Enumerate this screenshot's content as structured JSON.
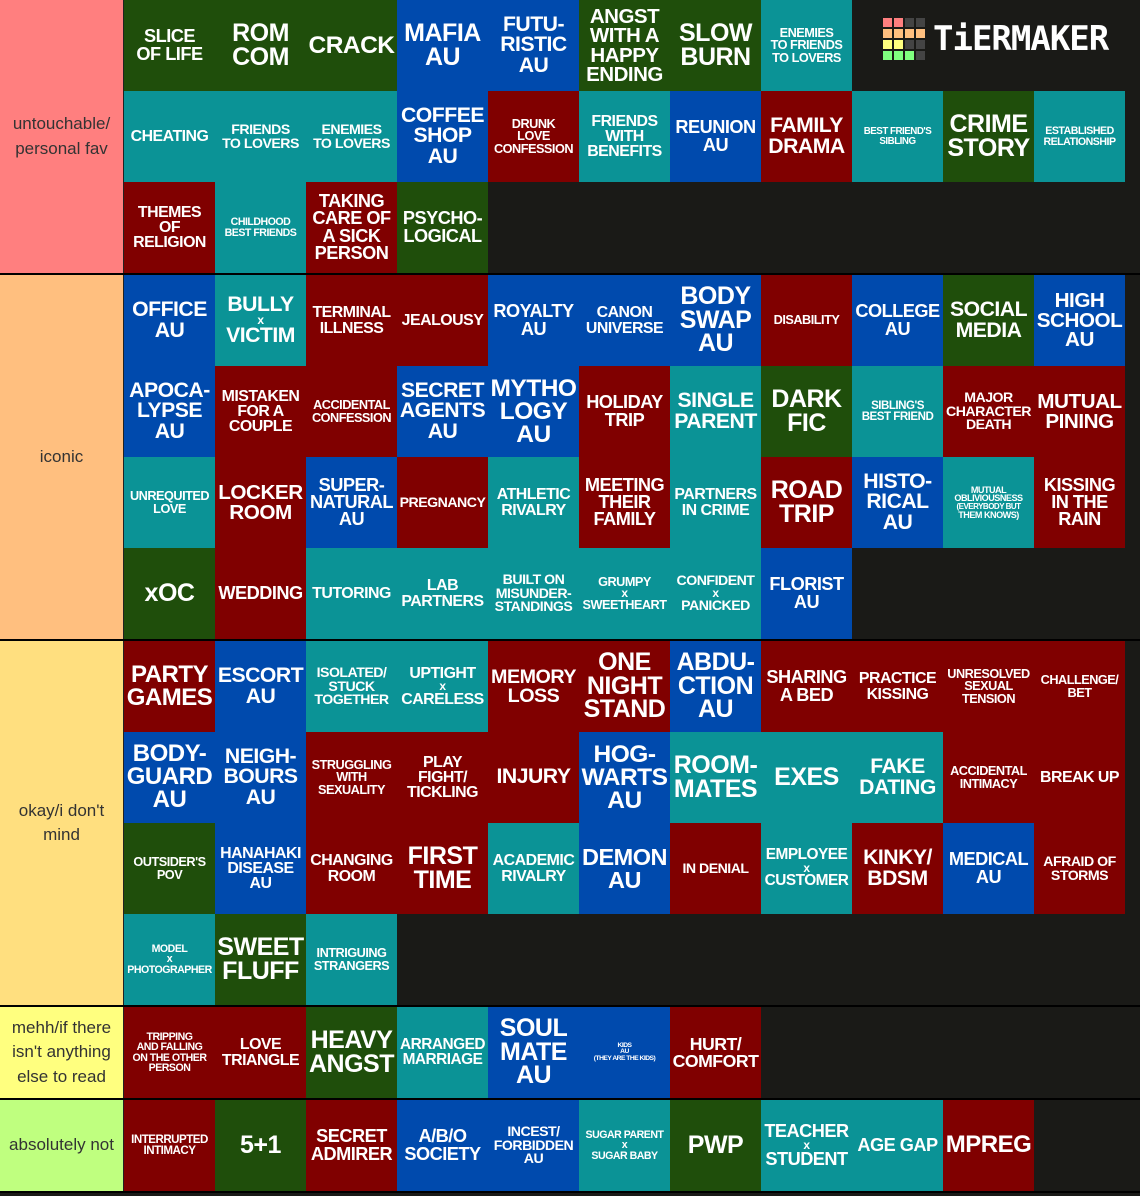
{
  "colors": {
    "g": "#1f4e0b",
    "b": "#004aad",
    "t": "#0b9396",
    "r": "#800000",
    "bg": "#1a1a17"
  },
  "logo": {
    "text": "TiERMAKER",
    "grid": [
      "#ff7f7f",
      "#ff7f7f",
      "#444",
      "#444",
      "#ffbf7f",
      "#ffbf7f",
      "#ffbf7f",
      "#ffbf7f",
      "#ffff7f",
      "#ffff7f",
      "#444",
      "#444",
      "#7fff7f",
      "#7fff7f",
      "#7fff7f",
      "#444"
    ]
  },
  "tiers": [
    {
      "label": "untouchable/ personal fav",
      "color": "#ff7f7f",
      "rows": 3,
      "items": [
        [
          "SLICE|OF LIFE",
          "g"
        ],
        [
          "ROM|COM",
          "g"
        ],
        [
          "CRACK",
          "g"
        ],
        [
          "MAFIA|AU",
          "b"
        ],
        [
          "FUTU-|RISTIC|AU",
          "b"
        ],
        [
          "ANGST|WITH A|HAPPY|ENDING",
          "g"
        ],
        [
          "SLOW|BURN",
          "g"
        ],
        [
          "ENEMIES|TO FRIENDS|TO LOVERS",
          "t"
        ],
        null,
        null,
        null,
        [
          "CHEATING",
          "t"
        ],
        [
          "FRIENDS|TO LOVERS",
          "t"
        ],
        [
          "ENEMIES|TO LOVERS",
          "t"
        ],
        [
          "COFFEE|SHOP|AU",
          "b"
        ],
        [
          "DRUNK|LOVE|CONFESSION",
          "r"
        ],
        [
          "FRIENDS|WITH|BENEFITS",
          "t"
        ],
        [
          "REUNION|AU",
          "b"
        ],
        [
          "FAMILY|DRAMA",
          "r"
        ],
        [
          "BEST FRIEND'S|SIBLING",
          "t"
        ],
        [
          "CRIME|STORY",
          "g"
        ],
        [
          "ESTABLISHED|RELATIONSHIP",
          "t"
        ],
        [
          "THEMES|OF|RELIGION",
          "r"
        ],
        [
          "CHILDHOOD|BEST FRIENDS",
          "t"
        ],
        [
          "TAKING|CARE OF|A SICK|PERSON",
          "r"
        ],
        [
          "PSYCHO-|LOGICAL",
          "g"
        ]
      ]
    },
    {
      "label": "iconic",
      "color": "#ffbf7f",
      "rows": 4,
      "items": [
        [
          "OFFICE|AU",
          "b"
        ],
        [
          "BULLY|x|VICTIM",
          "t"
        ],
        [
          "TERMINAL|ILLNESS",
          "r"
        ],
        [
          "JEALOUSY",
          "r"
        ],
        [
          "ROYALTY|AU",
          "b"
        ],
        [
          "CANON|UNIVERSE",
          "b"
        ],
        [
          "BODY|SWAP|AU",
          "b"
        ],
        [
          "DISABILITY",
          "r"
        ],
        [
          "COLLEGE|AU",
          "b"
        ],
        [
          "SOCIAL|MEDIA",
          "g"
        ],
        [
          "HIGH|SCHOOL|AU",
          "b"
        ],
        [
          "APOCA-|LYPSE|AU",
          "b"
        ],
        [
          "MISTAKEN|FOR A|COUPLE",
          "r"
        ],
        [
          "ACCIDENTAL|CONFESSION",
          "r"
        ],
        [
          "SECRET|AGENTS|AU",
          "b"
        ],
        [
          "MYTHO|LOGY|AU",
          "b"
        ],
        [
          "HOLIDAY|TRIP",
          "r"
        ],
        [
          "SINGLE|PARENT",
          "t"
        ],
        [
          "DARK|FIC",
          "g"
        ],
        [
          "SIBLING'S|BEST FRIEND",
          "t"
        ],
        [
          "MAJOR|CHARACTER|DEATH",
          "r"
        ],
        [
          "MUTUAL|PINING",
          "r"
        ],
        [
          "UNREQUITED|LOVE",
          "t"
        ],
        [
          "LOCKER|ROOM",
          "r"
        ],
        [
          "SUPER-|NATURAL|AU",
          "b"
        ],
        [
          "PREGNANCY",
          "r"
        ],
        [
          "ATHLETIC|RIVALRY",
          "t"
        ],
        [
          "MEETING|THEIR|FAMILY",
          "r"
        ],
        [
          "PARTNERS|IN CRIME",
          "t"
        ],
        [
          "ROAD|TRIP",
          "r"
        ],
        [
          "HISTO-|RICAL|AU",
          "b"
        ],
        [
          "MUTUAL|OBLIVIOUSNESS|(EVERYBODY BUT|THEM KNOWS)",
          "t"
        ],
        [
          "KISSING|IN THE|RAIN",
          "r"
        ],
        [
          "xOC",
          "g"
        ],
        [
          "WEDDING",
          "r"
        ],
        [
          "TUTORING",
          "t"
        ],
        [
          "LAB|PARTNERS",
          "t"
        ],
        [
          "BUILT ON|MISUNDER-|STANDINGS",
          "t"
        ],
        [
          "GRUMPY|x|SWEETHEART",
          "t"
        ],
        [
          "CONFIDENT|x|PANICKED",
          "t"
        ],
        [
          "FLORIST|AU",
          "b"
        ]
      ]
    },
    {
      "label": "okay/i don't mind",
      "color": "#ffdf7f",
      "rows": 4,
      "items": [
        [
          "PARTY|GAMES",
          "r"
        ],
        [
          "ESCORT|AU",
          "b"
        ],
        [
          "ISOLATED/|STUCK|TOGETHER",
          "t"
        ],
        [
          "UPTIGHT|x|CARELESS",
          "t"
        ],
        [
          "MEMORY|LOSS",
          "r"
        ],
        [
          "ONE|NIGHT|STAND",
          "r"
        ],
        [
          "ABDU-|CTION|AU",
          "b"
        ],
        [
          "SHARING|A BED",
          "r"
        ],
        [
          "PRACTICE|KISSING",
          "r"
        ],
        [
          "UNRESOLVED|SEXUAL|TENSION",
          "r"
        ],
        [
          "CHALLENGE/|BET",
          "r"
        ],
        [
          "BODY-|GUARD|AU",
          "b"
        ],
        [
          "NEIGH-|BOURS|AU",
          "b"
        ],
        [
          "STRUGGLING|WITH|SEXUALITY",
          "r"
        ],
        [
          "PLAY|FIGHT/|TICKLING",
          "r"
        ],
        [
          "INJURY",
          "r"
        ],
        [
          "HOG-|WARTS|AU",
          "b"
        ],
        [
          "ROOM-|MATES",
          "t"
        ],
        [
          "EXES",
          "t"
        ],
        [
          "FAKE|DATING",
          "t"
        ],
        [
          "ACCIDENTAL|INTIMACY",
          "r"
        ],
        [
          "BREAK UP",
          "r"
        ],
        [
          "OUTSIDER'S|POV",
          "g"
        ],
        [
          "HANAHAKI|DISEASE|AU",
          "b"
        ],
        [
          "CHANGING|ROOM",
          "r"
        ],
        [
          "FIRST|TIME",
          "r"
        ],
        [
          "ACADEMIC|RIVALRY",
          "t"
        ],
        [
          "DEMON|AU",
          "b"
        ],
        [
          "IN DENIAL",
          "r"
        ],
        [
          "EMPLOYEE|x|CUSTOMER",
          "t"
        ],
        [
          "KINKY/|BDSM",
          "r"
        ],
        [
          "MEDICAL|AU",
          "b"
        ],
        [
          "AFRAID OF|STORMS",
          "r"
        ],
        [
          "MODEL|x|PHOTOGRAPHER",
          "t"
        ],
        [
          "SWEET|FLUFF",
          "g"
        ],
        [
          "INTRIGUING|STRANGERS",
          "t"
        ]
      ]
    },
    {
      "label": "mehh/if there isn't anything else to read",
      "color": "#ffff7f",
      "rows": 1,
      "items": [
        [
          "TRIPPING|AND FALLING|ON THE OTHER|PERSON",
          "r"
        ],
        [
          "LOVE|TRIANGLE",
          "r"
        ],
        [
          "HEAVY|ANGST",
          "g"
        ],
        [
          "ARRANGED|MARRIAGE",
          "t"
        ],
        [
          "SOUL|MATE|AU",
          "b"
        ],
        [
          "KIDS|AU|(THEY ARE THE KIDS)",
          "b"
        ],
        [
          "HURT/|COMFORT",
          "r"
        ]
      ]
    },
    {
      "label": "absolutely not",
      "color": "#bfff7f",
      "rows": 1,
      "items": [
        [
          "INTERRUPTED|INTIMACY",
          "r"
        ],
        [
          "5+1",
          "g"
        ],
        [
          "SECRET|ADMIRER",
          "r"
        ],
        [
          "A/B/O|SOCIETY",
          "b"
        ],
        [
          "INCEST/|FORBIDDEN|AU",
          "b"
        ],
        [
          "SUGAR PARENT|x|SUGAR BABY",
          "t"
        ],
        [
          "PWP",
          "g"
        ],
        [
          "TEACHER|x|STUDENT",
          "t"
        ],
        [
          "AGE GAP",
          "t"
        ],
        [
          "MPREG",
          "r"
        ]
      ]
    }
  ]
}
